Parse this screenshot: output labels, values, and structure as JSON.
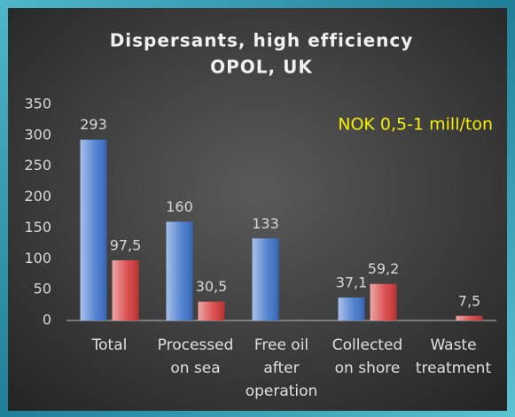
{
  "chart_data": {
    "type": "bar",
    "title": [
      "Dispersants, high efficiency",
      "OPOL, UK"
    ],
    "annotation": "NOK 0,5-1 mill/ton",
    "categories": [
      [
        "Total"
      ],
      [
        "Processed",
        "on sea"
      ],
      [
        "Free oil",
        "after",
        "operation"
      ],
      [
        "Collected",
        "on shore"
      ],
      [
        "Waste",
        "treatment"
      ]
    ],
    "series": [
      {
        "color": "#3f74cc",
        "values": [
          293,
          160,
          133,
          37.1,
          null
        ],
        "value_labels": [
          "293",
          "160",
          "133",
          "37,1",
          null
        ]
      },
      {
        "color": "#d63a3a",
        "values": [
          97.5,
          30.5,
          null,
          59.2,
          7.5
        ],
        "value_labels": [
          "97,5",
          "30,5",
          null,
          "59,2",
          "7,5"
        ]
      }
    ],
    "ylim": [
      0,
      350
    ],
    "yticks": [
      0,
      50,
      100,
      150,
      200,
      250,
      300,
      350
    ],
    "grid": false
  }
}
